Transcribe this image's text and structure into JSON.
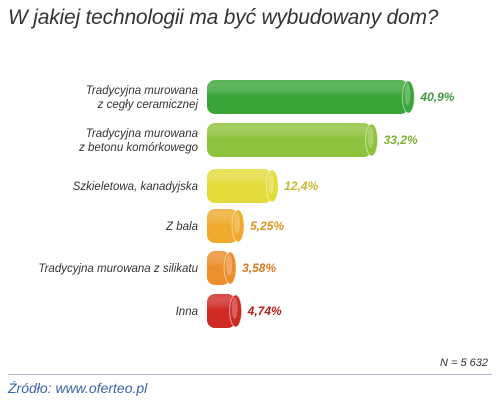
{
  "title": "W jakiej technologii ma być wybudowany dom?",
  "note": "N = 5 632",
  "source": "Źródło: www.oferteo.pl",
  "chart_data": {
    "type": "bar",
    "orientation": "horizontal",
    "title": "W jakiej technologii ma być wybudowany dom?",
    "categories": [
      [
        "Tradycyjna murowana",
        "z cegły ceramicznej"
      ],
      [
        "Tradycyjna murowana",
        "z betonu komórkowego"
      ],
      [
        "Szkieletowa, kanadyjska"
      ],
      [
        "Z bala"
      ],
      [
        "Tradycyjna murowana z silikatu"
      ],
      [
        "Inna"
      ]
    ],
    "values": [
      40.9,
      33.2,
      12.4,
      5.25,
      3.58,
      4.74
    ],
    "value_labels": [
      "40,9%",
      "33,2%",
      "12,4%",
      "5,25%",
      "3,58%",
      "4,74%"
    ],
    "colors": [
      "#3aa63a",
      "#8fc23c",
      "#e2dc3a",
      "#eeaa2c",
      "#ec8e2c",
      "#cf2b25"
    ],
    "label_colors": [
      "#3f9c3f",
      "#7fae34",
      "#c9b92a",
      "#d7951f",
      "#d57b1d",
      "#b7201c"
    ],
    "xlim": [
      0,
      45
    ],
    "grid": false,
    "legend": "none"
  }
}
